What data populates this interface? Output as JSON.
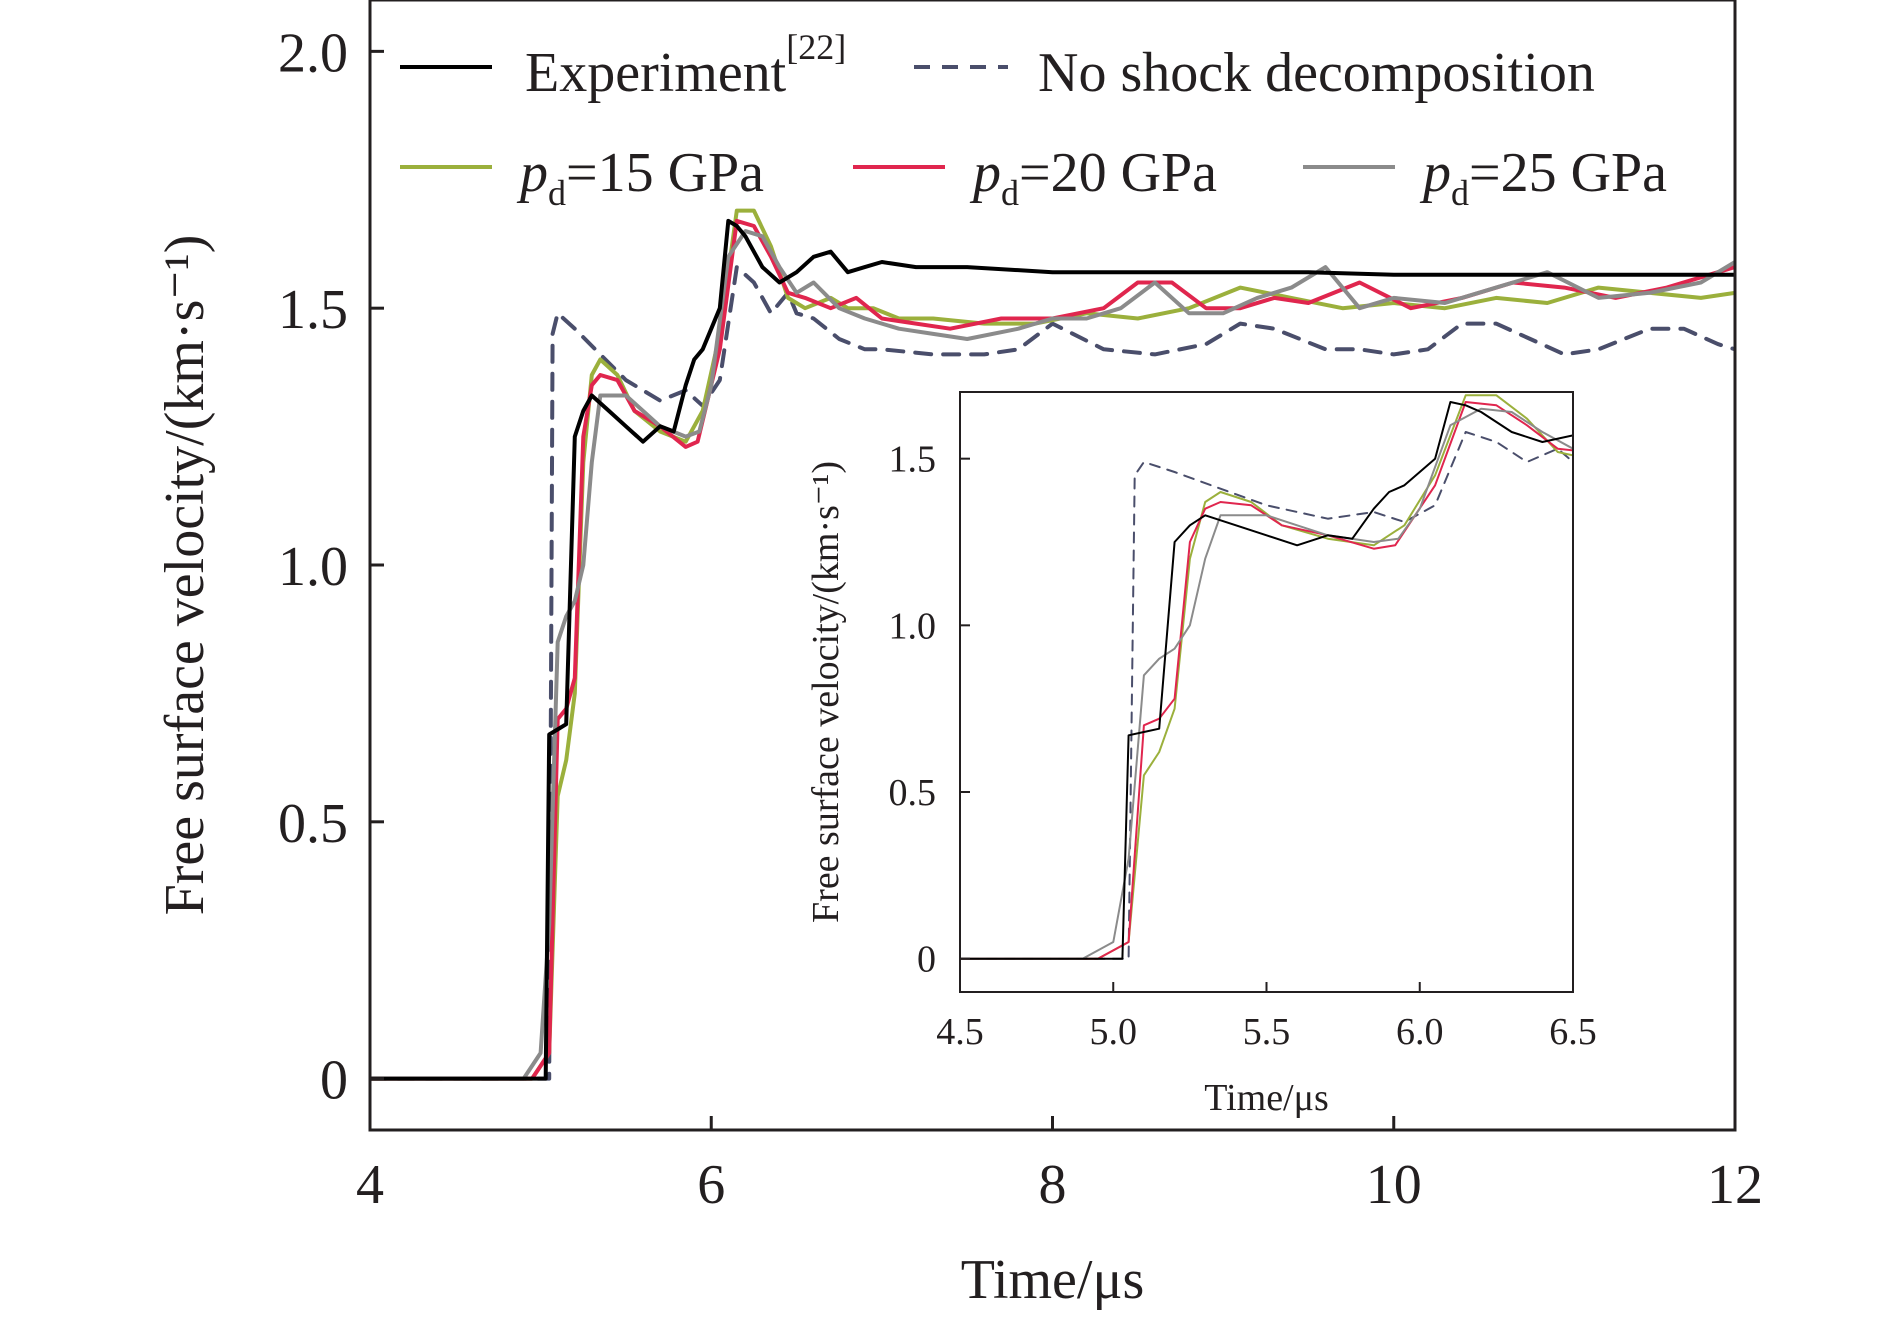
{
  "chart_data": [
    {
      "type": "line",
      "xlabel": "Time/μs",
      "ylabel": "Free surface velocity/(km·s⁻¹)",
      "xlim": [
        4,
        12
      ],
      "ylim": [
        -0.1,
        2.1
      ],
      "xticks": [
        "4",
        "6",
        "8",
        "10",
        "12"
      ],
      "yticks": [
        "0",
        "0.5",
        "1.0",
        "1.5",
        "2.0"
      ],
      "xtick_values": [
        4,
        6,
        8,
        10,
        12
      ],
      "ytick_values": [
        0,
        0.5,
        1.0,
        1.5,
        2.0
      ],
      "legend_position": "top",
      "series": [
        {
          "name": "Experiment[22]",
          "label_base": "Experiment",
          "label_sup": "[22]",
          "color": "#000000",
          "style": "solid",
          "x": [
            4.0,
            4.9,
            5.03,
            5.05,
            5.1,
            5.15,
            5.2,
            5.25,
            5.3,
            5.4,
            5.5,
            5.6,
            5.7,
            5.78,
            5.85,
            5.9,
            5.95,
            6.05,
            6.1,
            6.15,
            6.2,
            6.3,
            6.4,
            6.5,
            6.6,
            6.7,
            6.8,
            6.9,
            7.0,
            7.2,
            7.5,
            8.0,
            8.5,
            9.0,
            9.5,
            10.0,
            10.5,
            11.0,
            11.5,
            12.0
          ],
          "y": [
            0.0,
            0.0,
            0.0,
            0.67,
            0.68,
            0.69,
            1.25,
            1.3,
            1.33,
            1.3,
            1.27,
            1.24,
            1.27,
            1.26,
            1.35,
            1.4,
            1.42,
            1.5,
            1.67,
            1.66,
            1.64,
            1.58,
            1.55,
            1.57,
            1.6,
            1.61,
            1.57,
            1.58,
            1.59,
            1.58,
            1.58,
            1.57,
            1.57,
            1.57,
            1.57,
            1.565,
            1.565,
            1.565,
            1.565,
            1.565
          ]
        },
        {
          "name": "No shock decomposition",
          "color": "#4a4e6b",
          "style": "dashed",
          "x": [
            4.0,
            4.95,
            5.05,
            5.07,
            5.1,
            5.2,
            5.35,
            5.5,
            5.7,
            5.85,
            5.95,
            6.05,
            6.15,
            6.25,
            6.35,
            6.45,
            6.5,
            6.6,
            6.75,
            6.9,
            7.0,
            7.3,
            7.6,
            7.8,
            8.0,
            8.3,
            8.6,
            8.9,
            9.1,
            9.3,
            9.6,
            9.8,
            10.0,
            10.2,
            10.4,
            10.6,
            10.8,
            11.0,
            11.2,
            11.5,
            11.7,
            11.9,
            12.0
          ],
          "y": [
            0.0,
            0.0,
            0.0,
            1.45,
            1.49,
            1.46,
            1.41,
            1.36,
            1.32,
            1.34,
            1.31,
            1.36,
            1.58,
            1.55,
            1.49,
            1.53,
            1.49,
            1.48,
            1.44,
            1.42,
            1.42,
            1.41,
            1.41,
            1.42,
            1.47,
            1.42,
            1.41,
            1.43,
            1.47,
            1.46,
            1.42,
            1.42,
            1.41,
            1.42,
            1.47,
            1.47,
            1.44,
            1.41,
            1.42,
            1.46,
            1.46,
            1.43,
            1.42
          ]
        },
        {
          "name": "pd=15 GPa",
          "label_base": "p",
          "label_sub": "d",
          "label_rest": "=15 GPa",
          "color": "#9bb03c",
          "style": "solid",
          "x": [
            4.0,
            4.95,
            5.05,
            5.1,
            5.15,
            5.2,
            5.25,
            5.3,
            5.35,
            5.45,
            5.55,
            5.7,
            5.85,
            5.95,
            6.05,
            6.15,
            6.25,
            6.35,
            6.45,
            6.55,
            6.7,
            6.8,
            6.95,
            7.1,
            7.3,
            7.6,
            7.9,
            8.2,
            8.5,
            8.8,
            9.1,
            9.4,
            9.7,
            10.0,
            10.3,
            10.6,
            10.9,
            11.2,
            11.5,
            11.8,
            12.0
          ],
          "y": [
            0.0,
            0.0,
            0.05,
            0.55,
            0.62,
            0.75,
            1.2,
            1.37,
            1.4,
            1.37,
            1.3,
            1.26,
            1.24,
            1.3,
            1.45,
            1.69,
            1.69,
            1.62,
            1.52,
            1.5,
            1.52,
            1.5,
            1.5,
            1.48,
            1.48,
            1.47,
            1.47,
            1.49,
            1.48,
            1.5,
            1.54,
            1.52,
            1.5,
            1.51,
            1.5,
            1.52,
            1.51,
            1.54,
            1.53,
            1.52,
            1.53
          ]
        },
        {
          "name": "pd=20 GPa",
          "label_base": "p",
          "label_sub": "d",
          "label_rest": "=20 GPa",
          "color": "#e0264e",
          "style": "solid",
          "x": [
            4.0,
            4.95,
            5.05,
            5.1,
            5.15,
            5.2,
            5.25,
            5.3,
            5.35,
            5.45,
            5.55,
            5.7,
            5.85,
            5.92,
            6.05,
            6.15,
            6.25,
            6.35,
            6.45,
            6.55,
            6.7,
            6.85,
            7.0,
            7.2,
            7.4,
            7.7,
            8.0,
            8.3,
            8.5,
            8.7,
            8.9,
            9.1,
            9.3,
            9.5,
            9.8,
            10.1,
            10.4,
            10.7,
            11.0,
            11.3,
            11.6,
            11.9,
            12.0
          ],
          "y": [
            0.0,
            0.0,
            0.05,
            0.7,
            0.72,
            0.78,
            1.25,
            1.35,
            1.37,
            1.36,
            1.3,
            1.27,
            1.23,
            1.24,
            1.42,
            1.67,
            1.66,
            1.6,
            1.53,
            1.52,
            1.5,
            1.52,
            1.48,
            1.47,
            1.46,
            1.48,
            1.48,
            1.5,
            1.55,
            1.55,
            1.5,
            1.5,
            1.52,
            1.51,
            1.55,
            1.5,
            1.52,
            1.55,
            1.54,
            1.52,
            1.54,
            1.57,
            1.58
          ]
        },
        {
          "name": "pd=25 GPa",
          "label_base": "p",
          "label_sub": "d",
          "label_rest": "=25 GPa",
          "color": "#8b8b8b",
          "style": "solid",
          "x": [
            4.0,
            4.9,
            5.0,
            5.05,
            5.1,
            5.15,
            5.2,
            5.25,
            5.3,
            5.35,
            5.4,
            5.5,
            5.6,
            5.7,
            5.85,
            5.93,
            6.0,
            6.1,
            6.2,
            6.3,
            6.4,
            6.5,
            6.6,
            6.75,
            6.9,
            7.1,
            7.3,
            7.5,
            7.8,
            8.0,
            8.2,
            8.4,
            8.6,
            8.8,
            9.0,
            9.2,
            9.4,
            9.6,
            9.8,
            10.0,
            10.3,
            10.6,
            10.9,
            11.2,
            11.5,
            11.8,
            12.0
          ],
          "y": [
            0.0,
            0.0,
            0.05,
            0.3,
            0.85,
            0.9,
            0.93,
            1.0,
            1.2,
            1.33,
            1.33,
            1.33,
            1.3,
            1.27,
            1.25,
            1.26,
            1.35,
            1.6,
            1.65,
            1.64,
            1.58,
            1.53,
            1.55,
            1.5,
            1.48,
            1.46,
            1.45,
            1.44,
            1.46,
            1.48,
            1.48,
            1.5,
            1.55,
            1.49,
            1.49,
            1.52,
            1.54,
            1.58,
            1.5,
            1.52,
            1.51,
            1.54,
            1.57,
            1.52,
            1.53,
            1.55,
            1.59
          ]
        }
      ]
    },
    {
      "type": "line",
      "xlabel": "Time/μs",
      "ylabel": "Free surface velocity/(km·s⁻¹)",
      "xlim": [
        4.5,
        6.5
      ],
      "ylim": [
        -0.1,
        1.7
      ],
      "xticks": [
        "4.5",
        "5.0",
        "5.5",
        "6.0",
        "6.5"
      ],
      "yticks": [
        "0",
        "0.5",
        "1.0",
        "1.5"
      ],
      "xtick_values": [
        4.5,
        5.0,
        5.5,
        6.0,
        6.5
      ],
      "ytick_values": [
        0,
        0.5,
        1.0,
        1.5
      ],
      "series_ref": "same series as main chart, zoomed to 4.5–6.5 μs"
    }
  ],
  "colors": {
    "axis": "#231f20",
    "background": "#ffffff"
  }
}
